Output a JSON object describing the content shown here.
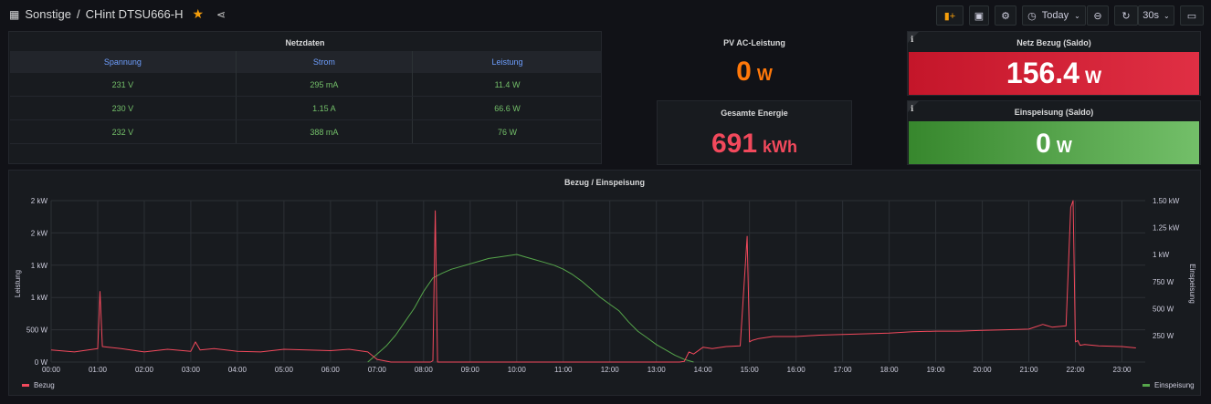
{
  "header": {
    "folder": "Sonstige",
    "separator": "/",
    "dashboard_title": "CHint DTSU666-H",
    "time_label": "Today",
    "refresh_label": "30s"
  },
  "netzdaten": {
    "title": "Netzdaten",
    "columns": [
      "Spannung",
      "Strom",
      "Leistung"
    ],
    "rows": [
      [
        "231 V",
        "295 mA",
        "11.4 W"
      ],
      [
        "230 V",
        "1.15 A",
        "66.6 W"
      ],
      [
        "232 V",
        "388 mA",
        "76 W"
      ]
    ],
    "value_color": "#73bf69",
    "header_color": "#6e9fff"
  },
  "pv": {
    "title": "PV AC-Leistung",
    "value": "0",
    "unit": "W",
    "color": "#ff780a"
  },
  "energie": {
    "title": "Gesamte Energie",
    "value": "691",
    "unit": "kWh",
    "color": "#f2495c"
  },
  "bezug": {
    "title": "Netz Bezug (Saldo)",
    "value": "156.4",
    "unit": "W",
    "color": "#e02f44"
  },
  "einspeisung": {
    "title": "Einspeisung (Saldo)",
    "value": "0",
    "unit": "W",
    "color": "#56a64b"
  },
  "chart_data": {
    "type": "line",
    "title": "Bezug / Einspeisung",
    "ylabel": "Leistung",
    "y2label": "Einspeisung",
    "y_ticks": [
      "0 W",
      "500 W",
      "1 kW",
      "1 kW",
      "2 kW",
      "2 kW"
    ],
    "y2_ticks": [
      "250 W",
      "500 W",
      "750 W",
      "1 kW",
      "1.25 kW",
      "1.50 kW"
    ],
    "x_ticks": [
      "00:00",
      "01:00",
      "02:00",
      "03:00",
      "04:00",
      "05:00",
      "06:00",
      "07:00",
      "08:00",
      "09:00",
      "10:00",
      "11:00",
      "12:00",
      "13:00",
      "14:00",
      "15:00",
      "16:00",
      "17:00",
      "18:00",
      "19:00",
      "20:00",
      "21:00",
      "22:00",
      "23:00"
    ],
    "xlim": [
      0,
      23.5
    ],
    "ylim": [
      0,
      2400
    ],
    "series": [
      {
        "name": "Bezug",
        "color": "#f2495c",
        "x": [
          0,
          0.5,
          1,
          1.05,
          1.1,
          1.5,
          2,
          2.5,
          3,
          3.1,
          3.2,
          3.5,
          4,
          4.5,
          5,
          5.5,
          6,
          6.4,
          6.8,
          7,
          7.3,
          7.6,
          8,
          8.15,
          8.2,
          8.25,
          8.3,
          8.4,
          8.6,
          8.8,
          8.9,
          9.0,
          9.3,
          9.6,
          10,
          11,
          12,
          13,
          13.5,
          13.6,
          13.7,
          13.8,
          14,
          14.2,
          14.5,
          14.8,
          14.95,
          15.0,
          15.05,
          15.2,
          15.5,
          16,
          16.5,
          17,
          17.5,
          18,
          18.5,
          19,
          19.5,
          20,
          20.5,
          21,
          21.3,
          21.5,
          21.8,
          21.9,
          21.95,
          22.0,
          22.05,
          22.1,
          22.2,
          22.5,
          23,
          23.3
        ],
        "y": [
          180,
          150,
          200,
          1050,
          230,
          200,
          150,
          190,
          160,
          300,
          180,
          200,
          160,
          150,
          190,
          180,
          170,
          190,
          150,
          40,
          0,
          0,
          0,
          0,
          20,
          2250,
          0,
          0,
          0,
          0,
          0,
          0,
          0,
          0,
          0,
          0,
          0,
          0,
          0,
          10,
          150,
          120,
          220,
          200,
          230,
          240,
          1870,
          300,
          320,
          350,
          380,
          380,
          400,
          410,
          420,
          430,
          450,
          460,
          460,
          470,
          480,
          490,
          560,
          520,
          540,
          2300,
          2400,
          300,
          320,
          250,
          260,
          240,
          230,
          210
        ]
      },
      {
        "name": "Einspeisung",
        "color": "#56a64b",
        "x": [
          6.8,
          7,
          7.2,
          7.4,
          7.6,
          7.8,
          8,
          8.2,
          8.4,
          8.6,
          8.8,
          9,
          9.2,
          9.4,
          9.6,
          9.8,
          10,
          10.2,
          10.4,
          10.6,
          10.8,
          11,
          11.2,
          11.4,
          11.6,
          11.8,
          12,
          12.2,
          12.4,
          12.6,
          12.8,
          13,
          13.2,
          13.4,
          13.6,
          13.8
        ],
        "y": [
          0,
          120,
          240,
          400,
          600,
          800,
          1050,
          1250,
          1320,
          1380,
          1420,
          1460,
          1500,
          1540,
          1560,
          1580,
          1600,
          1560,
          1520,
          1480,
          1440,
          1380,
          1300,
          1200,
          1080,
          960,
          860,
          760,
          600,
          460,
          360,
          260,
          180,
          100,
          40,
          0
        ]
      }
    ]
  }
}
